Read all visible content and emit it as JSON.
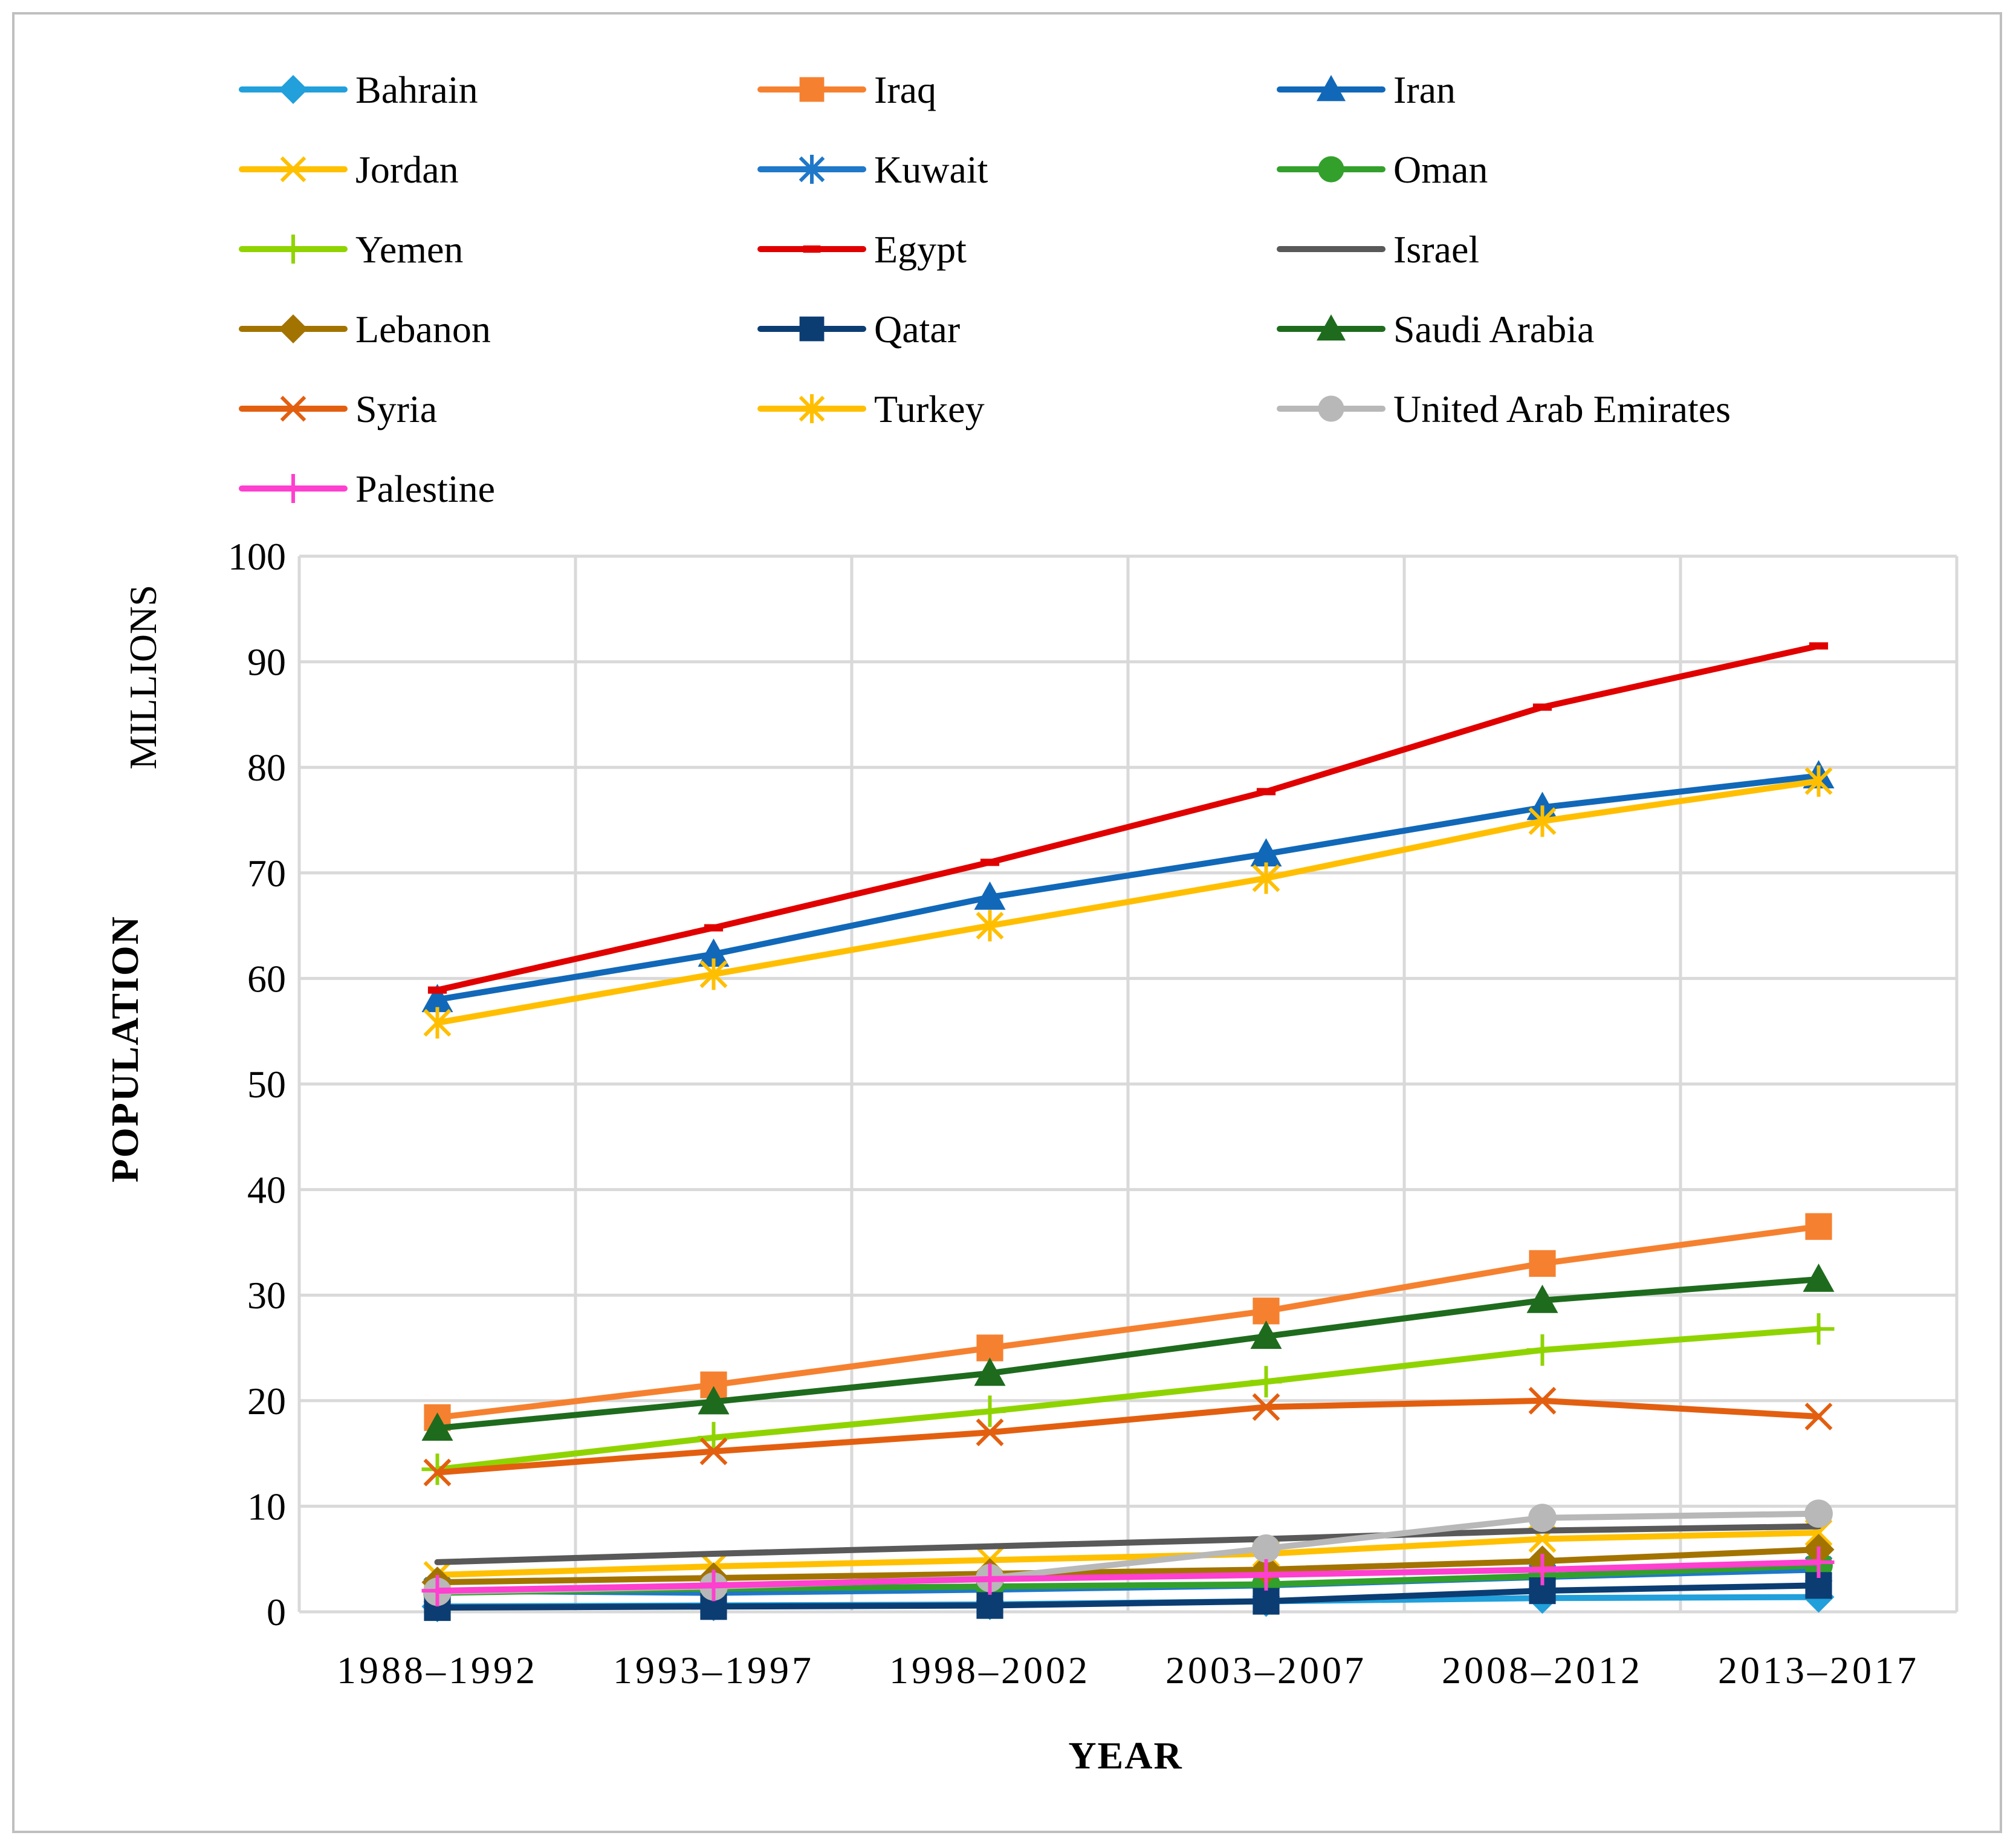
{
  "chart_data": {
    "type": "line",
    "title": "",
    "xlabel": "YEAR",
    "ylabel": "POPULATION",
    "yunit": "MILLIONS",
    "ylim": [
      0,
      100
    ],
    "yticks": [
      0,
      10,
      20,
      30,
      40,
      50,
      60,
      70,
      80,
      90,
      100
    ],
    "grid": true,
    "legend_position": "top",
    "categories": [
      "1988–1992",
      "1993–1997",
      "1998–2002",
      "2003–2007",
      "2008–2012",
      "2013–2017"
    ],
    "series": [
      {
        "name": "Bahrain",
        "color": "#21a0db",
        "marker": "diamond",
        "values": [
          0.5,
          0.6,
          0.7,
          1.0,
          1.3,
          1.4
        ]
      },
      {
        "name": "Iraq",
        "color": "#f58130",
        "marker": "square",
        "values": [
          18.4,
          21.5,
          25.0,
          28.5,
          33.0,
          36.5
        ]
      },
      {
        "name": "Iran",
        "color": "#1168b8",
        "marker": "triangle",
        "values": [
          58.0,
          62.3,
          67.7,
          71.8,
          76.2,
          79.2
        ]
      },
      {
        "name": "Jordan",
        "color": "#ffc000",
        "marker": "x",
        "values": [
          3.5,
          4.3,
          4.9,
          5.5,
          6.9,
          7.5
        ]
      },
      {
        "name": "Kuwait",
        "color": "#1f78c8",
        "marker": "asterisk",
        "values": [
          2.0,
          1.8,
          2.1,
          2.5,
          3.3,
          4.0
        ]
      },
      {
        "name": "Oman",
        "color": "#33a02c",
        "marker": "circle",
        "values": [
          1.8,
          2.2,
          2.4,
          2.6,
          3.4,
          4.4
        ]
      },
      {
        "name": "Yemen",
        "color": "#8fd400",
        "marker": "plus",
        "values": [
          13.5,
          16.5,
          19.0,
          21.8,
          24.8,
          26.8
        ]
      },
      {
        "name": "Egypt",
        "color": "#e00000",
        "marker": "dash",
        "values": [
          58.9,
          64.8,
          71.0,
          77.7,
          85.7,
          91.5
        ]
      },
      {
        "name": "Israel",
        "color": "#595959",
        "marker": "none",
        "values": [
          4.7,
          5.5,
          6.2,
          6.9,
          7.7,
          8.1
        ]
      },
      {
        "name": "Lebanon",
        "color": "#a37300",
        "marker": "diamond",
        "values": [
          2.8,
          3.2,
          3.6,
          4.0,
          4.8,
          5.9
        ]
      },
      {
        "name": "Qatar",
        "color": "#0b3d73",
        "marker": "square",
        "values": [
          0.4,
          0.5,
          0.6,
          1.0,
          2.0,
          2.5
        ]
      },
      {
        "name": "Saudi Arabia",
        "color": "#1e6b1e",
        "marker": "triangle",
        "values": [
          17.4,
          19.9,
          22.6,
          26.1,
          29.5,
          31.5
        ]
      },
      {
        "name": "Syria",
        "color": "#e35f10",
        "marker": "x",
        "values": [
          13.2,
          15.2,
          17.0,
          19.4,
          20.0,
          18.5
        ]
      },
      {
        "name": "Turkey",
        "color": "#ffbf00",
        "marker": "asterisk",
        "values": [
          55.8,
          60.4,
          65.0,
          69.5,
          74.9,
          78.7
        ]
      },
      {
        "name": "United Arab Emirates",
        "color": "#b8b8b8",
        "marker": "circle",
        "values": [
          1.9,
          2.4,
          3.2,
          6.0,
          8.9,
          9.3
        ]
      },
      {
        "name": "Palestine",
        "color": "#ff3fcf",
        "marker": "plus",
        "values": [
          2.0,
          2.5,
          3.1,
          3.5,
          4.0,
          4.7
        ]
      }
    ]
  }
}
